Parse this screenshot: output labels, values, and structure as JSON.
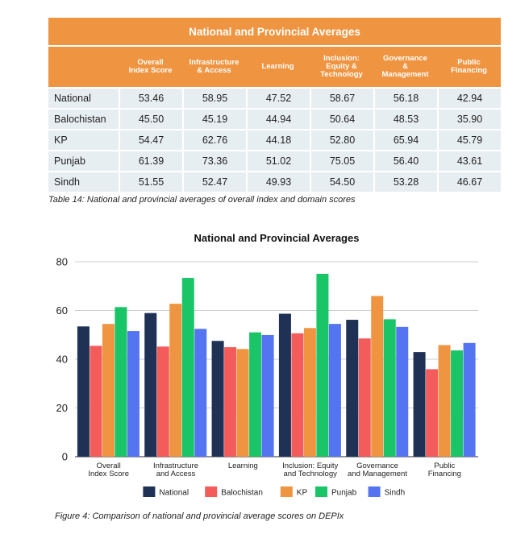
{
  "table": {
    "title": "National and Provincial Averages",
    "columns": [
      "",
      "Overall\nIndex Score",
      "Infrastructure\n& Access",
      "Learning",
      "Inclusion:\nEquity &\nTechnology",
      "Governance\n&\nManagement",
      "Public\nFinancing"
    ],
    "rows": [
      {
        "label": "National",
        "values": [
          "53.46",
          "58.95",
          "47.52",
          "58.67",
          "56.18",
          "42.94"
        ]
      },
      {
        "label": "Balochistan",
        "values": [
          "45.50",
          "45.19",
          "44.94",
          "50.64",
          "48.53",
          "35.90"
        ]
      },
      {
        "label": "KP",
        "values": [
          "54.47",
          "62.76",
          "44.18",
          "52.80",
          "65.94",
          "45.79"
        ]
      },
      {
        "label": "Punjab",
        "values": [
          "61.39",
          "73.36",
          "51.02",
          "75.05",
          "56.40",
          "43.61"
        ]
      },
      {
        "label": "Sindh",
        "values": [
          "51.55",
          "52.47",
          "49.93",
          "54.50",
          "53.28",
          "46.67"
        ]
      }
    ],
    "header_color": "#EF9440",
    "row_color": "#E7EEF1"
  },
  "table_caption": "Table 14: National and provincial averages of overall index and domain scores",
  "figure_caption": "Figure 4: Comparison of national and provincial average scores on DEPIx",
  "chart_data": {
    "type": "bar",
    "title": "National and Provincial Averages",
    "xlabel": "",
    "ylabel": "",
    "ylim": [
      0,
      80
    ],
    "yticks": [
      0,
      20,
      40,
      60,
      80
    ],
    "grid": true,
    "legend_position": "bottom",
    "categories": [
      "Overall\nIndex Score",
      "Infrastructure\nand Access",
      "Learning",
      "Inclusion: Equity\nand Technology",
      "Governance\nand Management",
      "Public\nFinancing"
    ],
    "series": [
      {
        "name": "National",
        "color": "#1F3154",
        "values": [
          53.46,
          58.95,
          47.52,
          58.67,
          56.18,
          42.94
        ]
      },
      {
        "name": "Balochistan",
        "color": "#F45B5B",
        "values": [
          45.5,
          45.19,
          44.94,
          50.64,
          48.53,
          35.9
        ]
      },
      {
        "name": "KP",
        "color": "#EF9440",
        "values": [
          54.47,
          62.76,
          44.18,
          52.8,
          65.94,
          45.79
        ]
      },
      {
        "name": "Punjab",
        "color": "#19C567",
        "values": [
          61.39,
          73.36,
          51.02,
          75.05,
          56.4,
          43.61
        ]
      },
      {
        "name": "Sindh",
        "color": "#5574F1",
        "values": [
          51.55,
          52.47,
          49.93,
          54.5,
          53.28,
          46.67
        ]
      }
    ]
  }
}
